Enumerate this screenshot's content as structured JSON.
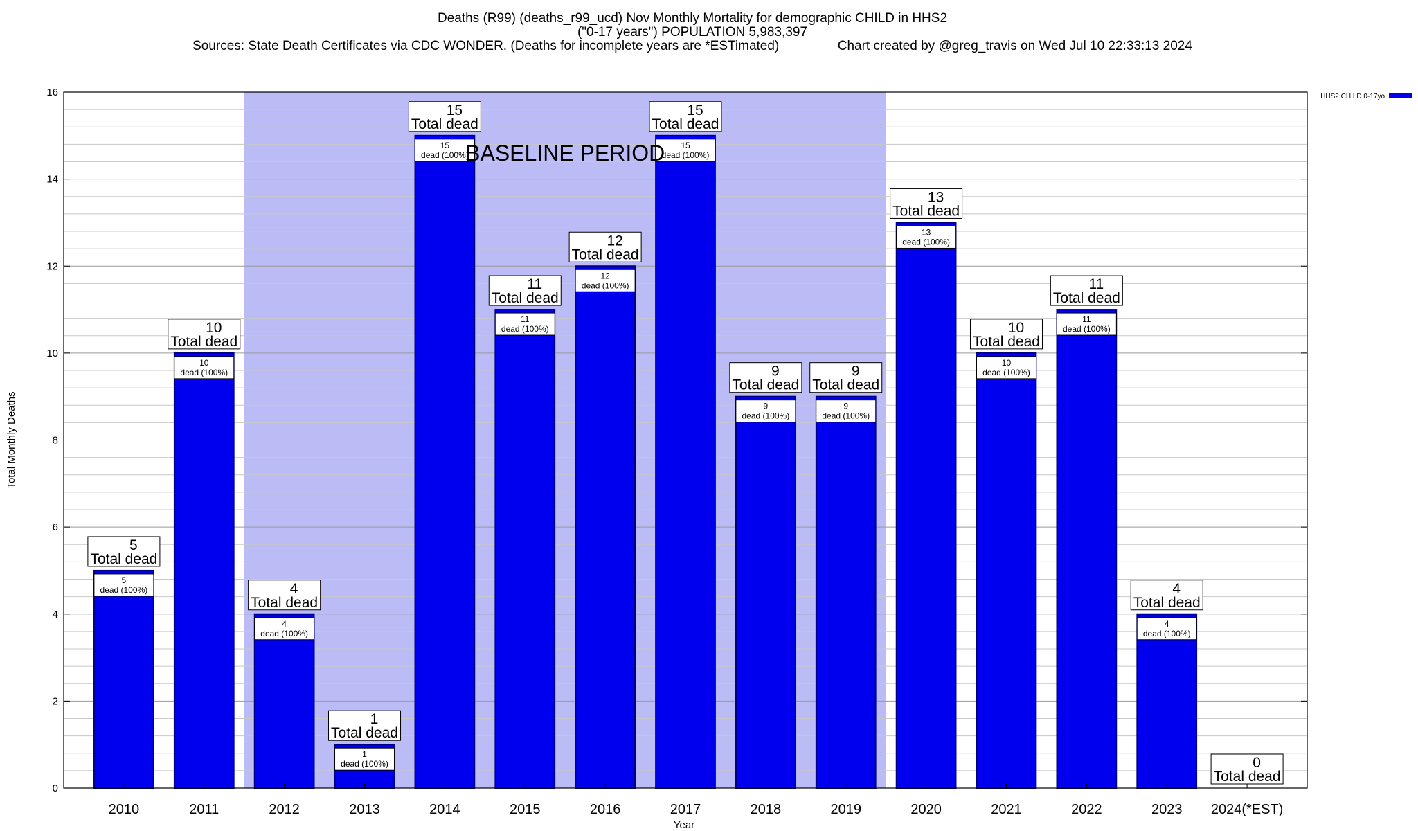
{
  "chart_data": {
    "type": "bar",
    "title_lines": [
      "Deaths (R99) (deaths_r99_ucd) Nov Monthly Mortality for demographic CHILD in HHS2",
      "(\"0-17 years\") POPULATION 5,983,397",
      "Sources: State Death Certificates via CDC WONDER. (Deaths for incomplete years are *ESTimated)                Chart created by @greg_travis on Wed Jul 10 22:33:13 2024"
    ],
    "xlabel": "Year",
    "ylabel": "Total Monthly Deaths",
    "ylim": [
      0,
      16
    ],
    "yticks": [
      0,
      2,
      4,
      6,
      8,
      10,
      12,
      14,
      16
    ],
    "minor_step": 0.4,
    "categories": [
      "2010",
      "2011",
      "2012",
      "2013",
      "2014",
      "2015",
      "2016",
      "2017",
      "2018",
      "2019",
      "2020",
      "2021",
      "2022",
      "2023",
      "2024(*EST)"
    ],
    "series": [
      {
        "name": "HHS2 CHILD 0-17yo",
        "values": [
          5,
          10,
          4,
          1,
          15,
          11,
          12,
          15,
          9,
          9,
          13,
          10,
          11,
          4,
          0
        ],
        "color": "#0000ee"
      }
    ],
    "total_label_suffix": "Total dead",
    "bar_label_suffix": "dead (100%)",
    "baseline_period": {
      "label": "BASELINE PERIOD",
      "start_category": "2012",
      "end_category": "2019",
      "color": "#bbbbf6"
    },
    "legend_position": "top-right",
    "grid": true
  }
}
